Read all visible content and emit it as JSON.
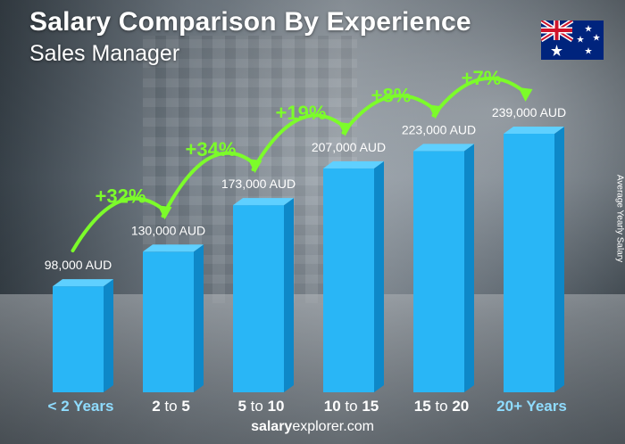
{
  "header": {
    "title": "Salary Comparison By Experience",
    "subtitle": "Sales Manager"
  },
  "flag_icon": "australia-flag-icon",
  "side_label": "Average Yearly Salary",
  "footer": {
    "brand": "salary",
    "rest": "explorer.com"
  },
  "colors": {
    "bar_front": "#29b6f6",
    "bar_side": "#0e88c8",
    "bar_top": "#5fd0ff",
    "growth": "#7cfc2a",
    "text": "#ffffff"
  },
  "chart_data": {
    "type": "bar",
    "categories": [
      "< 2 Years",
      "2 to 5",
      "5 to 10",
      "10 to 15",
      "15 to 20",
      "20+ Years"
    ],
    "category_parts": [
      [
        "< 2 Years",
        "",
        ""
      ],
      [
        "2",
        " to ",
        "5"
      ],
      [
        "5",
        " to ",
        "10"
      ],
      [
        "10",
        " to ",
        "15"
      ],
      [
        "15",
        " to ",
        "20"
      ],
      [
        "20+ Years",
        "",
        ""
      ]
    ],
    "values": [
      98000,
      130000,
      173000,
      207000,
      223000,
      239000
    ],
    "value_labels": [
      "98,000 AUD",
      "130,000 AUD",
      "173,000 AUD",
      "207,000 AUD",
      "223,000 AUD",
      "239,000 AUD"
    ],
    "growth_labels": [
      "+32%",
      "+34%",
      "+19%",
      "+8%",
      "+7%"
    ],
    "ylabel": "Average Yearly Salary",
    "ylim": [
      0,
      239000
    ]
  }
}
